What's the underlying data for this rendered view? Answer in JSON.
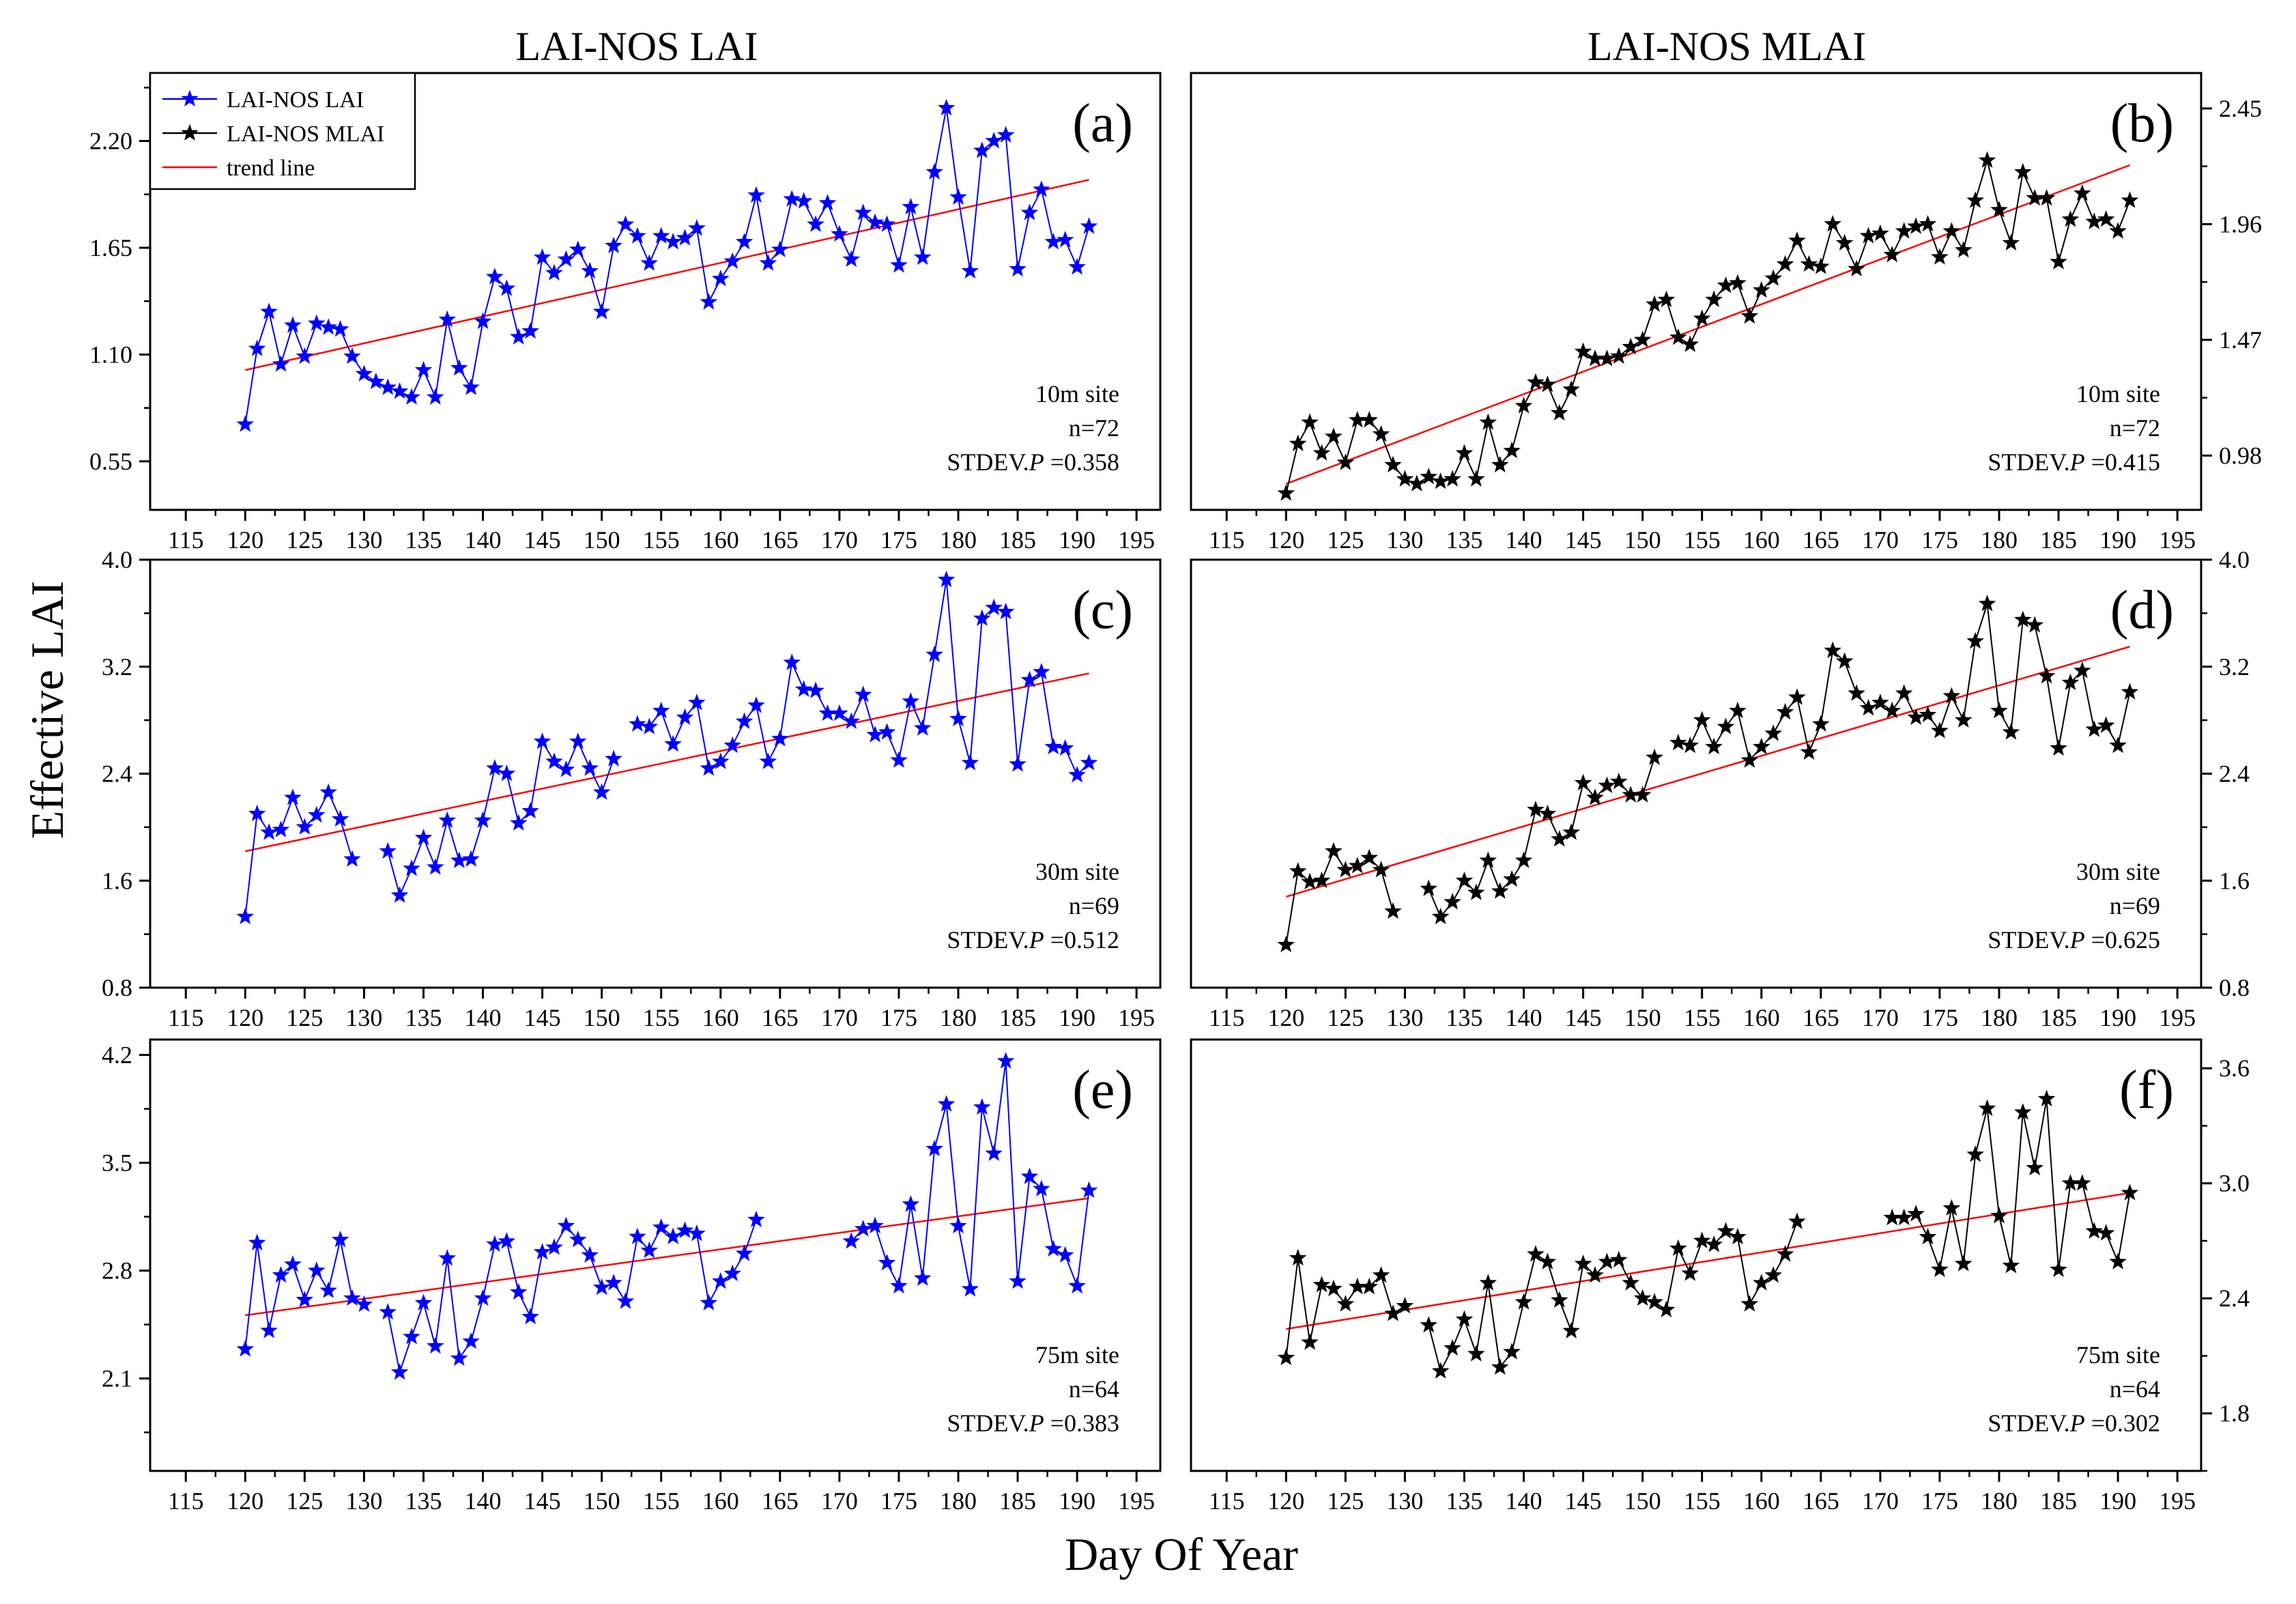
{
  "column_titles": [
    "LAI-NOS LAI",
    "LAI-NOS MLAI"
  ],
  "xlabel": "Day Of Year",
  "ylabel": "Effective LAI",
  "colors": {
    "lai": "#0000ff",
    "mlai": "#000000",
    "trend": "#ff0000"
  },
  "legend": [
    "LAI-NOS LAI",
    "LAI-NOS MLAI",
    "trend line"
  ],
  "chart_data": [
    {
      "id": "a",
      "label": "(a)",
      "type": "line",
      "series_name": "LAI-NOS LAI",
      "series_color": "#0000ff",
      "x": [
        120,
        121,
        122,
        123,
        124,
        125,
        126,
        127,
        128,
        129,
        130,
        131,
        132,
        133,
        134,
        135,
        136,
        137,
        138,
        139,
        140,
        141,
        142,
        143,
        144,
        145,
        146,
        147,
        148,
        149,
        150,
        151,
        152,
        153,
        154,
        155,
        156,
        157,
        158,
        159,
        160,
        161,
        162,
        163,
        164,
        165,
        166,
        167,
        168,
        169,
        170,
        171,
        172,
        173,
        174,
        175,
        176,
        177,
        178,
        179,
        180,
        181,
        182,
        183,
        184,
        185,
        186,
        187,
        188,
        189,
        190,
        191
      ],
      "y": [
        0.74,
        1.13,
        1.32,
        1.05,
        1.25,
        1.09,
        1.26,
        1.24,
        1.23,
        1.09,
        1.0,
        0.96,
        0.93,
        0.91,
        0.88,
        1.02,
        0.88,
        1.28,
        1.03,
        0.93,
        1.27,
        1.5,
        1.44,
        1.19,
        1.22,
        1.6,
        1.52,
        1.59,
        1.64,
        1.53,
        1.32,
        1.66,
        1.77,
        1.71,
        1.57,
        1.71,
        1.68,
        1.7,
        1.75,
        1.37,
        1.49,
        1.58,
        1.68,
        1.92,
        1.57,
        1.64,
        1.9,
        1.89,
        1.77,
        1.88,
        1.72,
        1.59,
        1.83,
        1.78,
        1.77,
        1.56,
        1.86,
        1.6,
        2.04,
        2.37,
        1.91,
        1.53,
        2.15,
        2.2,
        2.23,
        1.54,
        1.83,
        1.95,
        1.68,
        1.69,
        1.55,
        1.76
      ],
      "trend": [
        [
          120,
          1.02
        ],
        [
          191,
          2.0
        ]
      ],
      "xlim": [
        112,
        197
      ],
      "ylim": [
        0.3,
        2.55
      ],
      "yticks": [
        0.55,
        1.1,
        1.65,
        2.2
      ],
      "yticklabels": [
        "0.55",
        "1.10",
        "1.65",
        "2.20"
      ],
      "xticks": [
        115,
        120,
        125,
        130,
        135,
        140,
        145,
        150,
        155,
        160,
        165,
        170,
        175,
        180,
        185,
        190,
        195
      ],
      "xticklabels": [
        "115",
        "120",
        "125",
        "130",
        "135",
        "140",
        "145",
        "150",
        "155",
        "160",
        "165",
        "170",
        "175",
        "180",
        "185",
        "190",
        "195"
      ],
      "site": "10m site",
      "n": "n=72",
      "stdev_prefix": "STDEV.",
      "stdev_p": "P",
      "stdev_value": " =0.358"
    },
    {
      "id": "b",
      "label": "(b)",
      "type": "line",
      "series_name": "LAI-NOS MLAI",
      "series_color": "#000000",
      "x": [
        120,
        121,
        122,
        123,
        124,
        125,
        126,
        127,
        128,
        129,
        130,
        131,
        132,
        133,
        134,
        135,
        136,
        137,
        138,
        139,
        140,
        141,
        142,
        143,
        144,
        145,
        146,
        147,
        148,
        149,
        150,
        151,
        152,
        153,
        154,
        155,
        156,
        157,
        158,
        159,
        160,
        161,
        162,
        163,
        164,
        165,
        166,
        167,
        168,
        169,
        170,
        171,
        172,
        173,
        174,
        175,
        176,
        177,
        178,
        179,
        180,
        181,
        182,
        183,
        184,
        185,
        186,
        187,
        188,
        189,
        190,
        191
      ],
      "y": [
        0.82,
        1.03,
        1.12,
        0.99,
        1.06,
        0.95,
        1.13,
        1.13,
        1.07,
        0.94,
        0.88,
        0.86,
        0.89,
        0.87,
        0.88,
        0.99,
        0.88,
        1.12,
        0.94,
        1.0,
        1.19,
        1.29,
        1.28,
        1.16,
        1.26,
        1.42,
        1.39,
        1.39,
        1.4,
        1.44,
        1.47,
        1.62,
        1.64,
        1.48,
        1.45,
        1.56,
        1.64,
        1.7,
        1.71,
        1.57,
        1.68,
        1.73,
        1.79,
        1.89,
        1.79,
        1.78,
        1.96,
        1.88,
        1.77,
        1.91,
        1.92,
        1.83,
        1.93,
        1.95,
        1.96,
        1.82,
        1.93,
        1.85,
        2.06,
        2.23,
        2.02,
        1.88,
        2.18,
        2.07,
        2.07,
        1.8,
        1.98,
        2.09,
        1.97,
        1.98,
        1.93,
        2.06
      ],
      "trend": [
        [
          120,
          0.86
        ],
        [
          191,
          2.21
        ]
      ],
      "xlim": [
        112,
        197
      ],
      "ylim": [
        0.75,
        2.6
      ],
      "yticks": [
        0.98,
        1.47,
        1.96,
        2.45
      ],
      "yticklabels": [
        "0.98",
        "1.47",
        "1.96",
        "2.45"
      ],
      "xticks": [
        115,
        120,
        125,
        130,
        135,
        140,
        145,
        150,
        155,
        160,
        165,
        170,
        175,
        180,
        185,
        190,
        195
      ],
      "xticklabels": [
        "115",
        "120",
        "125",
        "130",
        "135",
        "140",
        "145",
        "150",
        "155",
        "160",
        "165",
        "170",
        "175",
        "180",
        "185",
        "190",
        "195"
      ],
      "site": "10m site",
      "n": "n=72",
      "stdev_prefix": "STDEV.",
      "stdev_p": "P",
      "stdev_value": " =0.415"
    },
    {
      "id": "c",
      "label": "(c)",
      "type": "line",
      "series_name": "LAI-NOS LAI",
      "series_color": "#0000ff",
      "x": [
        120,
        121,
        122,
        123,
        124,
        125,
        126,
        127,
        128,
        129,
        132,
        133,
        134,
        135,
        136,
        137,
        138,
        139,
        140,
        141,
        142,
        143,
        144,
        145,
        146,
        147,
        148,
        149,
        150,
        151,
        153,
        154,
        155,
        156,
        157,
        158,
        159,
        160,
        161,
        162,
        163,
        164,
        165,
        166,
        167,
        168,
        169,
        170,
        171,
        172,
        173,
        174,
        175,
        176,
        177,
        178,
        179,
        180,
        181,
        182,
        183,
        184,
        185,
        186,
        187,
        188,
        189,
        190,
        191
      ],
      "y": [
        1.33,
        2.1,
        1.96,
        1.98,
        2.22,
        2.0,
        2.09,
        2.26,
        2.06,
        1.76,
        1.82,
        1.49,
        1.69,
        1.92,
        1.7,
        2.05,
        1.75,
        1.76,
        2.05,
        2.44,
        2.4,
        2.03,
        2.12,
        2.64,
        2.49,
        2.43,
        2.64,
        2.44,
        2.26,
        2.51,
        2.77,
        2.75,
        2.87,
        2.62,
        2.82,
        2.93,
        2.44,
        2.49,
        2.61,
        2.79,
        2.91,
        2.49,
        2.66,
        3.23,
        3.03,
        3.02,
        2.85,
        2.85,
        2.79,
        2.99,
        2.69,
        2.71,
        2.5,
        2.94,
        2.74,
        3.29,
        3.85,
        2.81,
        2.48,
        3.56,
        3.64,
        3.61,
        2.47,
        3.1,
        3.16,
        2.6,
        2.59,
        2.39,
        2.48
      ],
      "trend": [
        [
          120,
          1.82
        ],
        [
          191,
          3.15
        ]
      ],
      "xlim": [
        112,
        197
      ],
      "ylim": [
        0.8,
        4.0
      ],
      "yticks": [
        0.8,
        1.6,
        2.4,
        3.2,
        4.0
      ],
      "yticklabels": [
        "0.8",
        "1.6",
        "2.4",
        "3.2",
        "4.0"
      ],
      "xticks": [
        115,
        120,
        125,
        130,
        135,
        140,
        145,
        150,
        155,
        160,
        165,
        170,
        175,
        180,
        185,
        190,
        195
      ],
      "xticklabels": [
        "115",
        "120",
        "125",
        "130",
        "135",
        "140",
        "145",
        "150",
        "155",
        "160",
        "165",
        "170",
        "175",
        "180",
        "185",
        "190",
        "195"
      ],
      "site": "30m site",
      "n": "n=69",
      "stdev_prefix": "STDEV.",
      "stdev_p": "P",
      "stdev_value": " =0.512"
    },
    {
      "id": "d",
      "label": "(d)",
      "type": "line",
      "series_name": "LAI-NOS MLAI",
      "series_color": "#000000",
      "x": [
        120,
        121,
        122,
        123,
        124,
        125,
        126,
        127,
        128,
        129,
        132,
        133,
        134,
        135,
        136,
        137,
        138,
        139,
        140,
        141,
        142,
        143,
        144,
        145,
        146,
        147,
        148,
        149,
        150,
        151,
        153,
        154,
        155,
        156,
        157,
        158,
        159,
        160,
        161,
        162,
        163,
        164,
        165,
        166,
        167,
        168,
        169,
        170,
        171,
        172,
        173,
        174,
        175,
        176,
        177,
        178,
        179,
        180,
        181,
        182,
        183,
        184,
        185,
        186,
        187,
        188,
        189,
        190,
        191
      ],
      "y": [
        1.12,
        1.67,
        1.59,
        1.6,
        1.82,
        1.68,
        1.71,
        1.77,
        1.68,
        1.37,
        1.54,
        1.33,
        1.44,
        1.6,
        1.51,
        1.75,
        1.52,
        1.61,
        1.75,
        2.13,
        2.1,
        1.91,
        1.96,
        2.33,
        2.22,
        2.31,
        2.34,
        2.24,
        2.24,
        2.52,
        2.63,
        2.61,
        2.8,
        2.6,
        2.75,
        2.87,
        2.5,
        2.6,
        2.7,
        2.86,
        2.97,
        2.56,
        2.77,
        3.32,
        3.24,
        3.0,
        2.89,
        2.93,
        2.87,
        3.0,
        2.82,
        2.84,
        2.72,
        2.98,
        2.8,
        3.39,
        3.67,
        2.87,
        2.71,
        3.55,
        3.51,
        3.13,
        2.59,
        3.08,
        3.17,
        2.73,
        2.76,
        2.61,
        3.01
      ],
      "trend": [
        [
          120,
          1.48
        ],
        [
          191,
          3.35
        ]
      ],
      "xlim": [
        112,
        197
      ],
      "ylim": [
        0.8,
        4.0
      ],
      "yticks": [
        0.8,
        1.6,
        2.4,
        3.2,
        4.0
      ],
      "yticklabels": [
        "0.8",
        "1.6",
        "2.4",
        "3.2",
        "4.0"
      ],
      "xticks": [
        115,
        120,
        125,
        130,
        135,
        140,
        145,
        150,
        155,
        160,
        165,
        170,
        175,
        180,
        185,
        190,
        195
      ],
      "xticklabels": [
        "115",
        "120",
        "125",
        "130",
        "135",
        "140",
        "145",
        "150",
        "155",
        "160",
        "165",
        "170",
        "175",
        "180",
        "185",
        "190",
        "195"
      ],
      "site": "30m site",
      "n": "n=69",
      "stdev_prefix": "STDEV.",
      "stdev_p": "P",
      "stdev_value": " =0.625"
    },
    {
      "id": "e",
      "label": "(e)",
      "type": "line",
      "series_name": "LAI-NOS LAI",
      "series_color": "#0000ff",
      "x": [
        120,
        121,
        122,
        123,
        124,
        125,
        126,
        127,
        128,
        129,
        130,
        132,
        133,
        134,
        135,
        136,
        137,
        138,
        139,
        140,
        141,
        142,
        143,
        144,
        145,
        146,
        147,
        148,
        149,
        150,
        151,
        152,
        153,
        154,
        155,
        156,
        157,
        158,
        159,
        160,
        161,
        162,
        163,
        171,
        172,
        173,
        174,
        175,
        176,
        177,
        178,
        179,
        180,
        181,
        182,
        183,
        184,
        185,
        186,
        187,
        188,
        189,
        190,
        191
      ],
      "y": [
        2.29,
        2.98,
        2.41,
        2.77,
        2.84,
        2.61,
        2.8,
        2.67,
        3.0,
        2.62,
        2.58,
        2.53,
        2.14,
        2.37,
        2.59,
        2.31,
        2.88,
        2.23,
        2.34,
        2.62,
        2.97,
        2.99,
        2.66,
        2.5,
        2.92,
        2.95,
        3.09,
        3.0,
        2.9,
        2.69,
        2.72,
        2.6,
        3.02,
        2.93,
        3.08,
        3.02,
        3.06,
        3.04,
        2.59,
        2.73,
        2.78,
        2.91,
        3.13,
        2.99,
        3.07,
        3.09,
        2.85,
        2.7,
        3.23,
        2.75,
        3.59,
        3.88,
        3.09,
        2.68,
        3.86,
        3.56,
        4.16,
        2.73,
        3.41,
        3.33,
        2.94,
        2.9,
        2.7,
        3.32
      ],
      "trend": [
        [
          120,
          2.51
        ],
        [
          191,
          3.27
        ]
      ],
      "xlim": [
        112,
        197
      ],
      "ylim": [
        1.5,
        4.3
      ],
      "yticks": [
        2.1,
        2.8,
        3.5,
        4.2
      ],
      "yticklabels": [
        "2.1",
        "2.8",
        "3.5",
        "4.2"
      ],
      "xticks": [
        115,
        120,
        125,
        130,
        135,
        140,
        145,
        150,
        155,
        160,
        165,
        170,
        175,
        180,
        185,
        190,
        195
      ],
      "xticklabels": [
        "115",
        "120",
        "125",
        "130",
        "135",
        "140",
        "145",
        "150",
        "155",
        "160",
        "165",
        "170",
        "175",
        "180",
        "185",
        "190",
        "195"
      ],
      "site": "75m site",
      "n": "n=64",
      "stdev_prefix": "STDEV.",
      "stdev_p": "P",
      "stdev_value": " =0.383"
    },
    {
      "id": "f",
      "label": "(f)",
      "type": "line",
      "series_name": "LAI-NOS MLAI",
      "series_color": "#000000",
      "x": [
        120,
        121,
        122,
        123,
        124,
        125,
        126,
        127,
        128,
        129,
        130,
        132,
        133,
        134,
        135,
        136,
        137,
        138,
        139,
        140,
        141,
        142,
        143,
        144,
        145,
        146,
        147,
        148,
        149,
        150,
        151,
        152,
        153,
        154,
        155,
        156,
        157,
        158,
        159,
        160,
        161,
        162,
        163,
        171,
        172,
        173,
        174,
        175,
        176,
        177,
        178,
        179,
        180,
        181,
        182,
        183,
        184,
        185,
        186,
        187,
        188,
        189,
        190,
        191
      ],
      "y": [
        2.09,
        2.61,
        2.17,
        2.47,
        2.45,
        2.37,
        2.46,
        2.46,
        2.52,
        2.32,
        2.36,
        2.26,
        2.02,
        2.14,
        2.29,
        2.11,
        2.48,
        2.04,
        2.12,
        2.38,
        2.63,
        2.59,
        2.39,
        2.23,
        2.58,
        2.52,
        2.59,
        2.6,
        2.48,
        2.4,
        2.38,
        2.34,
        2.66,
        2.53,
        2.7,
        2.68,
        2.75,
        2.72,
        2.37,
        2.48,
        2.52,
        2.63,
        2.8,
        2.82,
        2.82,
        2.84,
        2.72,
        2.55,
        2.87,
        2.58,
        3.15,
        3.39,
        2.83,
        2.57,
        3.37,
        3.08,
        3.44,
        2.55,
        3.0,
        3.0,
        2.75,
        2.74,
        2.59,
        2.95
      ],
      "trend": [
        [
          120,
          2.24
        ],
        [
          191,
          2.95
        ]
      ],
      "xlim": [
        112,
        197
      ],
      "ylim": [
        1.5,
        3.75
      ],
      "yticks": [
        1.8,
        2.4,
        3.0,
        3.6
      ],
      "yticklabels": [
        "1.8",
        "2.4",
        "3.0",
        "3.6"
      ],
      "xticks": [
        115,
        120,
        125,
        130,
        135,
        140,
        145,
        150,
        155,
        160,
        165,
        170,
        175,
        180,
        185,
        190,
        195
      ],
      "xticklabels": [
        "115",
        "120",
        "125",
        "130",
        "135",
        "140",
        "145",
        "150",
        "155",
        "160",
        "165",
        "170",
        "175",
        "180",
        "185",
        "190",
        "195"
      ],
      "site": "75m site",
      "n": "n=64",
      "stdev_prefix": "STDEV.",
      "stdev_p": "P",
      "stdev_value": " =0.302"
    }
  ]
}
